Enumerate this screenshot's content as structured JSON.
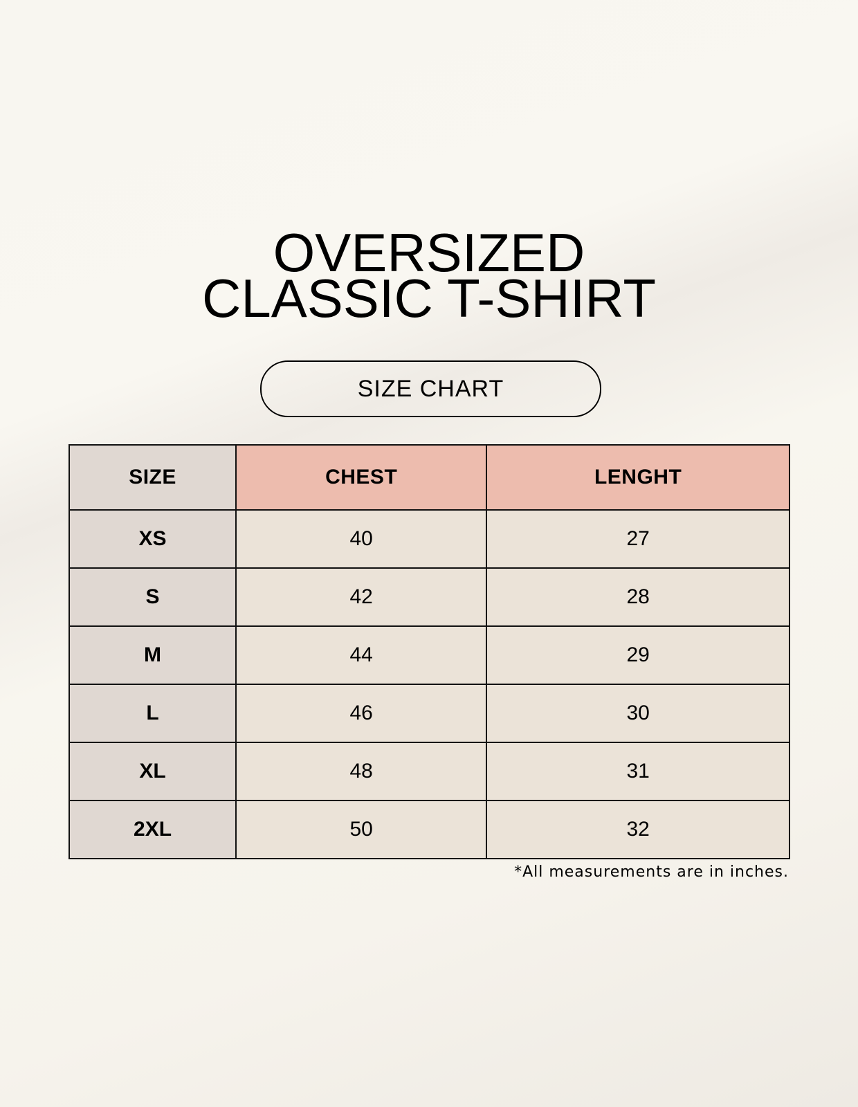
{
  "title": {
    "line1": "OVERSIZED",
    "line2": "CLASSIC T-SHIRT"
  },
  "badge": "SIZE CHART",
  "table": {
    "headers": [
      "SIZE",
      "CHEST",
      "LENGHT"
    ],
    "rows": [
      [
        "XS",
        "40",
        "27"
      ],
      [
        "S",
        "42",
        "28"
      ],
      [
        "M",
        "44",
        "29"
      ],
      [
        "L",
        "46",
        "30"
      ],
      [
        "XL",
        "48",
        "31"
      ],
      [
        "2XL",
        "50",
        "32"
      ]
    ]
  },
  "footnote": "*All measurements are in inches.",
  "colors": {
    "header_accent": "#edbcae",
    "size_column": "#e0d8d2",
    "cell": "#ebe3d8",
    "background": "#f8f6f0"
  }
}
